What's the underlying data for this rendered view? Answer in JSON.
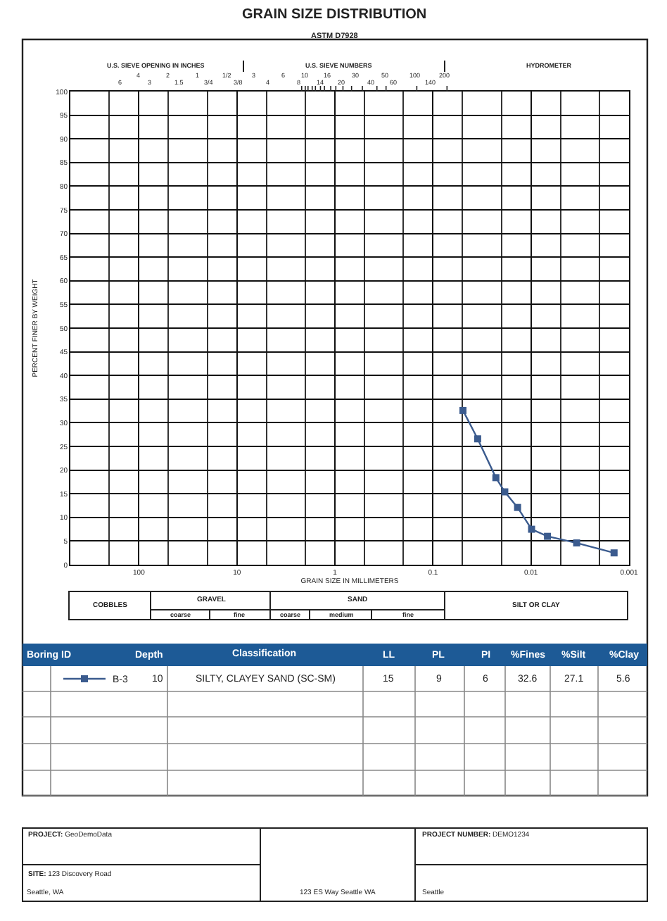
{
  "chart_data": {
    "type": "line",
    "title": "GRAIN SIZE DISTRIBUTION",
    "subtitle": "ASTM D7928",
    "xlabel": "GRAIN SIZE IN MILLIMETERS",
    "ylabel": "PERCENT FINER BY WEIGHT",
    "x": [
      0.0494,
      0.035,
      0.0228,
      0.0185,
      0.0137,
      0.00986,
      0.00679,
      0.00342,
      0.00142
    ],
    "series": [
      {
        "name": "B-3",
        "color": "#3b5b8e",
        "values": [
          32.6,
          26.6,
          18.4,
          15.4,
          12.1,
          7.5,
          6.0,
          4.6,
          2.5
        ]
      }
    ],
    "log": "x",
    "xlim": [
      500,
      0.001
    ],
    "xticks": [
      {
        "value": 100,
        "label": "100"
      },
      {
        "value": 10,
        "label": "10"
      },
      {
        "value": 1,
        "label": "1"
      },
      {
        "value": 0.1,
        "label": "0.1"
      },
      {
        "value": 0.01,
        "label": "0.01"
      },
      {
        "value": 0.001,
        "label": "0.001"
      }
    ],
    "ylim": [
      0,
      100
    ],
    "yticks": [
      0,
      5,
      10,
      15,
      20,
      25,
      30,
      35,
      40,
      45,
      50,
      55,
      60,
      65,
      70,
      75,
      80,
      85,
      90,
      95,
      100
    ],
    "grid": true,
    "legend": "bottom",
    "marker": "square",
    "line_style": "solid",
    "annotations": [
      "U.S. SIEVE OPENING IN INCHES",
      "U.S. SIEVE NUMBERS",
      "HYDROMETER",
      "COBBLES",
      "GRAVEL",
      "SAND",
      "SILT OR CLAY",
      "coarse",
      "fine",
      "coarse",
      "medium",
      "fine",
      "Boring ID",
      "Depth",
      "Classification",
      "LL",
      "PL",
      "PI",
      "%Fines",
      "%Silt",
      "%Clay",
      "10",
      "SILTY, CLAYEY SAND (SC-SM)",
      "15",
      "9",
      "6",
      "32.6",
      "27.1",
      "5.6",
      "PROJECT: GeoDemoData",
      "SITE: 123 Discovery Road",
      "Seattle, WA",
      "123 ES Way Seattle WA",
      "PROJECT NUMBER: DEMO1234",
      "Seattle",
      "6",
      "4",
      "3",
      "2",
      "1.5",
      "1",
      "3/4",
      "1/2",
      "3/8",
      "3",
      "4",
      "6",
      "8",
      "10",
      "14",
      "16",
      "20",
      "30",
      "40",
      "50",
      "60",
      "100",
      "140",
      "200"
    ]
  }
}
